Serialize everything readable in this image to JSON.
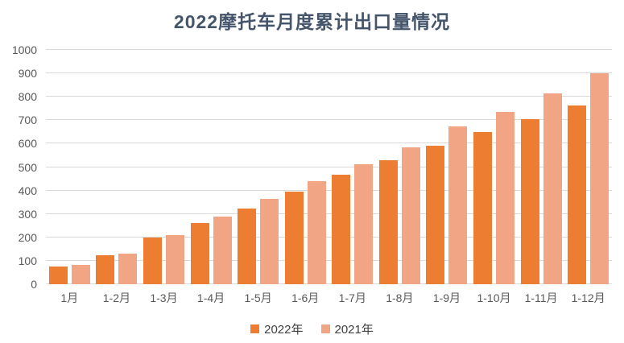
{
  "title": "2022摩托车月度累计出口量情况",
  "colors": {
    "title_text": "#44546A",
    "axis_text": "#595959",
    "legend_text": "#404040",
    "gridline": "#D9D9D9",
    "background": "#FFFFFF",
    "series_2022": "#ED7D31",
    "series_2021": "#F2A585"
  },
  "chart_data": {
    "type": "bar",
    "title": "2022摩托车月度累计出口量情况",
    "xlabel": "",
    "ylabel": "",
    "categories": [
      "1月",
      "1-2月",
      "1-3月",
      "1-4月",
      "1-5月",
      "1-6月",
      "1-7月",
      "1-8月",
      "1-9月",
      "1-10月",
      "1-11月",
      "1-12月"
    ],
    "series": [
      {
        "name": "2022年",
        "color": "#ED7D31",
        "values": [
          75,
          124,
          200,
          260,
          324,
          396,
          468,
          528,
          590,
          649,
          704,
          764
        ]
      },
      {
        "name": "2021年",
        "color": "#F2A585",
        "values": [
          82,
          132,
          210,
          289,
          363,
          439,
          511,
          584,
          674,
          734,
          815,
          902
        ]
      }
    ],
    "ylim": [
      0,
      1000
    ],
    "y_ticks": [
      0,
      100,
      200,
      300,
      400,
      500,
      600,
      700,
      800,
      900,
      1000
    ],
    "grid": true,
    "legend_position": "bottom"
  }
}
